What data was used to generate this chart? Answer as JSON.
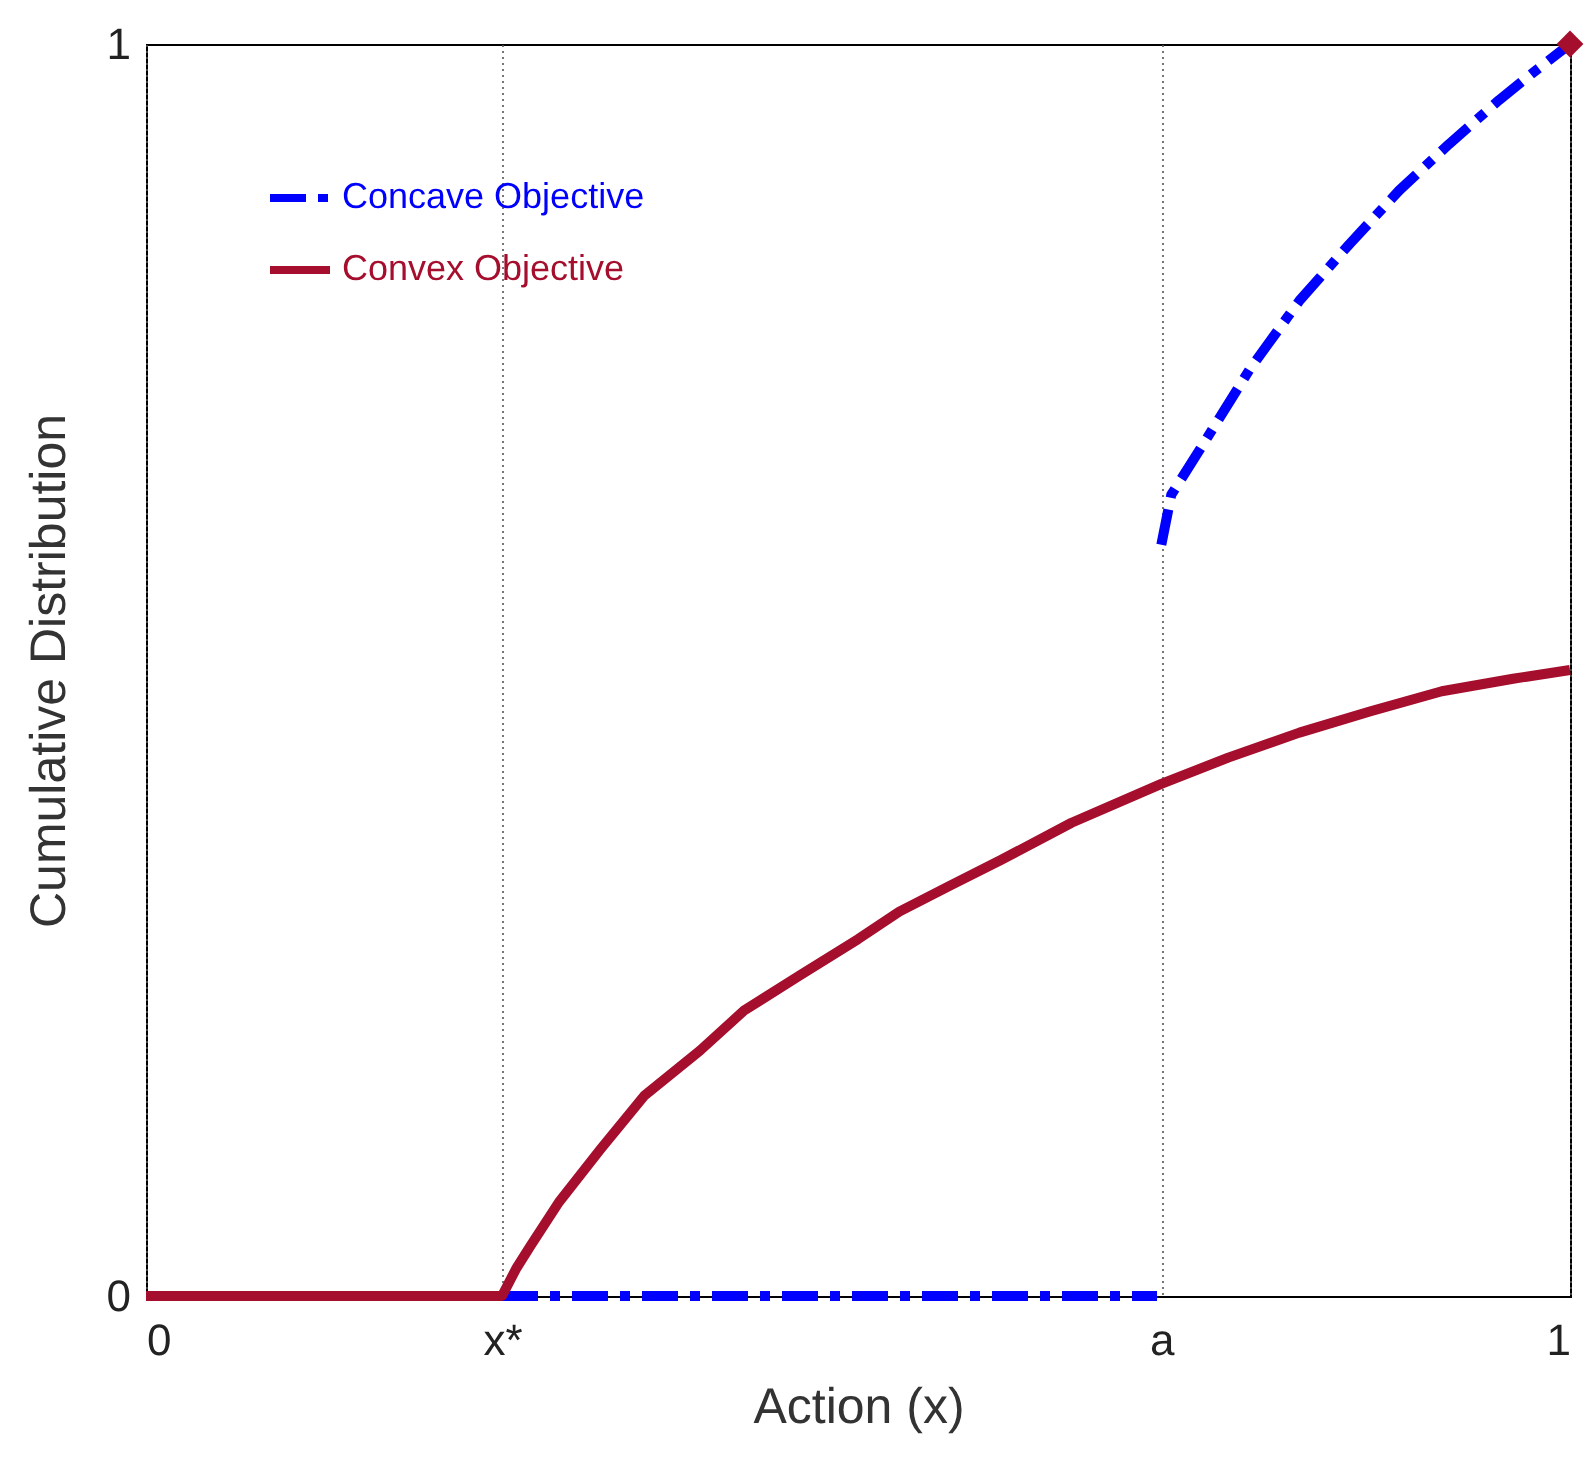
{
  "chart_data": {
    "type": "line",
    "xlabel": "Action (x)",
    "ylabel": "Cumulative Distribution",
    "xlim": [
      0,
      1
    ],
    "ylim": [
      0,
      1
    ],
    "xticks": [
      0,
      {
        "value": 0.25,
        "label": "x*"
      },
      {
        "value": 0.713,
        "label": "a"
      },
      1
    ],
    "yticks": [
      0,
      1
    ],
    "grid": "x",
    "legend": "top left",
    "marker": "none",
    "series": [
      {
        "name": "Concave Objective",
        "color": "#0000ff",
        "line_style": "dashed",
        "x": [
          0.713,
          0.72,
          0.74,
          0.775,
          0.81,
          0.845,
          0.88,
          0.915,
          0.95,
          0.975,
          1
        ],
        "values": [
          0.6,
          0.64,
          0.676,
          0.74,
          0.795,
          0.84,
          0.883,
          0.92,
          0.955,
          0.978,
          1
        ]
      },
      {
        "color": "#0000ff",
        "line_style": "dashed",
        "x": [
          0.25,
          0.71
        ],
        "values": [
          0,
          0
        ]
      },
      {
        "name": "Convex Objective",
        "color": "#a50f2d",
        "line_style": "solid",
        "x": [
          0,
          0.25,
          0.26,
          0.27,
          0.29,
          0.319,
          0.35,
          0.389,
          0.42,
          0.459,
          0.5,
          0.529,
          0.565,
          0.6,
          0.65,
          0.713,
          0.76,
          0.81,
          0.86,
          0.91,
          0.96,
          1
        ],
        "values": [
          0,
          0,
          0.022,
          0.04,
          0.075,
          0.117,
          0.16,
          0.196,
          0.228,
          0.256,
          0.285,
          0.307,
          0.328,
          0.348,
          0.378,
          0.409,
          0.43,
          0.45,
          0.467,
          0.483,
          0.493,
          0.5
        ]
      },
      {
        "type": "scatter",
        "color": "#a50f2d",
        "marker": "diamond",
        "x": [
          1
        ],
        "values": [
          1
        ]
      }
    ]
  }
}
